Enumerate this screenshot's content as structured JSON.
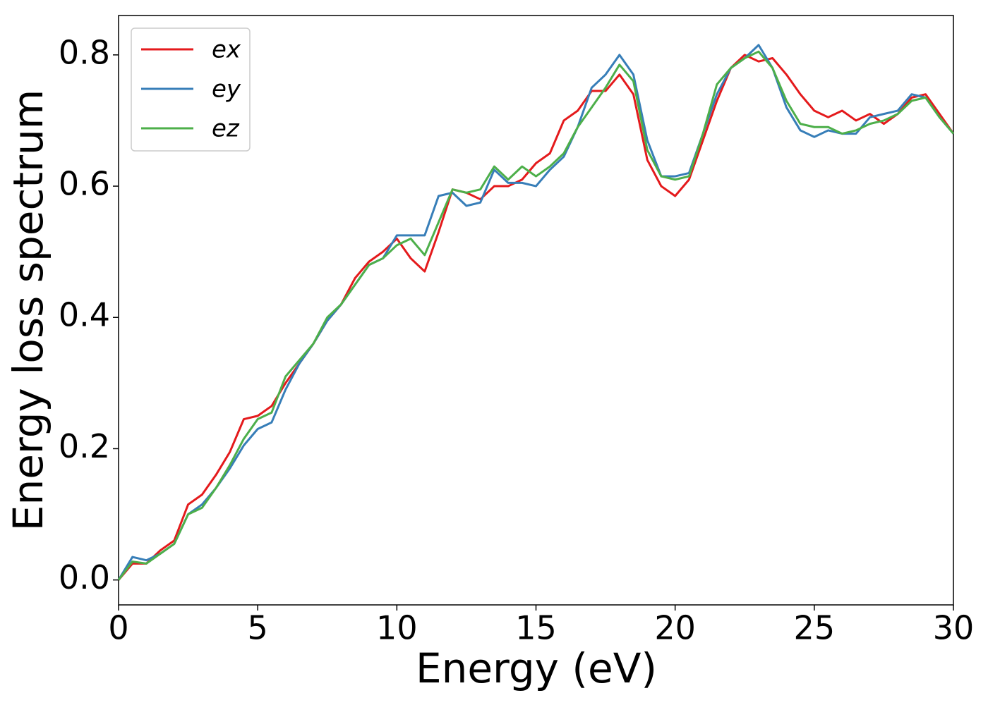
{
  "chart_data": {
    "type": "line",
    "xlabel": "Energy (eV)",
    "ylabel": "Energy loss spectrum",
    "x": [
      0,
      0.5,
      1,
      1.5,
      2,
      2.5,
      3,
      3.5,
      4,
      4.5,
      5,
      5.5,
      6,
      6.5,
      7,
      7.5,
      8,
      8.5,
      9,
      9.5,
      10,
      10.5,
      11,
      11.5,
      12,
      12.5,
      13,
      13.5,
      14,
      14.5,
      15,
      15.5,
      16,
      16.5,
      17,
      17.5,
      18,
      18.5,
      19,
      19.5,
      20,
      20.5,
      21,
      21.5,
      22,
      22.5,
      23,
      23.5,
      24,
      24.5,
      25,
      25.5,
      26,
      26.5,
      27,
      27.5,
      28,
      28.5,
      29,
      29.5,
      30
    ],
    "series": [
      {
        "name": "ex",
        "color": "#e41a1c",
        "values": [
          0,
          0.025,
          0.025,
          0.045,
          0.06,
          0.115,
          0.13,
          0.16,
          0.195,
          0.245,
          0.25,
          0.265,
          0.3,
          0.33,
          0.36,
          0.395,
          0.42,
          0.46,
          0.485,
          0.5,
          0.52,
          0.49,
          0.47,
          0.53,
          0.595,
          0.59,
          0.58,
          0.6,
          0.6,
          0.61,
          0.635,
          0.65,
          0.7,
          0.715,
          0.745,
          0.745,
          0.77,
          0.74,
          0.64,
          0.6,
          0.585,
          0.61,
          0.67,
          0.73,
          0.78,
          0.8,
          0.79,
          0.795,
          0.77,
          0.74,
          0.715,
          0.705,
          0.715,
          0.7,
          0.71,
          0.695,
          0.71,
          0.735,
          0.74,
          0.71,
          0.68
        ]
      },
      {
        "name": "ey",
        "color": "#377eb8",
        "values": [
          0,
          0.035,
          0.03,
          0.04,
          0.055,
          0.1,
          0.115,
          0.14,
          0.17,
          0.205,
          0.23,
          0.24,
          0.29,
          0.33,
          0.36,
          0.395,
          0.42,
          0.45,
          0.48,
          0.49,
          0.525,
          0.525,
          0.525,
          0.585,
          0.59,
          0.57,
          0.575,
          0.625,
          0.605,
          0.605,
          0.6,
          0.625,
          0.645,
          0.69,
          0.75,
          0.77,
          0.8,
          0.77,
          0.67,
          0.615,
          0.615,
          0.62,
          0.68,
          0.74,
          0.78,
          0.795,
          0.815,
          0.78,
          0.72,
          0.685,
          0.675,
          0.685,
          0.68,
          0.68,
          0.705,
          0.71,
          0.715,
          0.74,
          0.735,
          0.705,
          0.68
        ]
      },
      {
        "name": "ez",
        "color": "#4daf4a",
        "values": [
          0,
          0.028,
          0.025,
          0.04,
          0.055,
          0.1,
          0.11,
          0.14,
          0.175,
          0.215,
          0.245,
          0.255,
          0.31,
          0.335,
          0.36,
          0.4,
          0.42,
          0.45,
          0.48,
          0.49,
          0.51,
          0.52,
          0.495,
          0.545,
          0.595,
          0.59,
          0.595,
          0.63,
          0.61,
          0.63,
          0.615,
          0.63,
          0.65,
          0.69,
          0.72,
          0.75,
          0.785,
          0.76,
          0.655,
          0.615,
          0.61,
          0.615,
          0.68,
          0.755,
          0.78,
          0.795,
          0.805,
          0.78,
          0.73,
          0.695,
          0.69,
          0.69,
          0.68,
          0.685,
          0.695,
          0.7,
          0.71,
          0.73,
          0.735,
          0.705,
          0.68
        ]
      }
    ],
    "xlim": [
      0,
      30
    ],
    "xticks": [
      0,
      5,
      10,
      15,
      20,
      25,
      30
    ],
    "ylim": [
      -0.038,
      0.86
    ],
    "yticks": [
      {
        "value": 0,
        "label": "0.0"
      },
      0.2,
      0.4,
      0.6,
      0.8
    ],
    "legend": "upper left",
    "grid": false
  }
}
